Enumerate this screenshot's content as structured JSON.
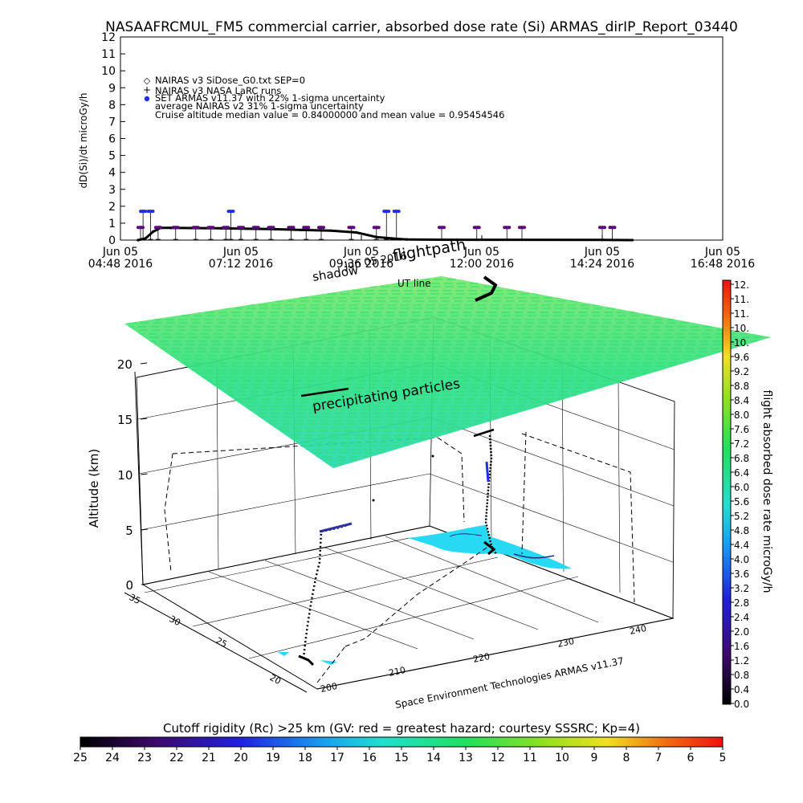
{
  "title": "NASAAFRCMUL_FM5 commercial carrier, absorbed dose rate (Si) ARMAS_dirIP_Report_03440",
  "chart_data": [
    {
      "type": "line",
      "ylabel": "dD(Si)/dt microGy/h",
      "ylim": [
        0,
        12
      ],
      "yticks": [
        "0",
        "1",
        "2",
        "3",
        "4",
        "5",
        "6",
        "7",
        "8",
        "9",
        "10",
        "11",
        "12"
      ],
      "xlim_hours": [
        4.8,
        16.8
      ],
      "xticks": [
        {
          "date": "Jun 05",
          "time": "04:48 2016"
        },
        {
          "date": "Jun 05",
          "time": "07:12 2016"
        },
        {
          "date": "Jun 05",
          "time": "09:36 2016"
        },
        {
          "date": "Jun 05",
          "time": "12:00 2016"
        },
        {
          "date": "Jun 05",
          "time": "14:24 2016"
        },
        {
          "date": "Jun 05",
          "time": "16:48 2016"
        }
      ],
      "legend": [
        {
          "label": "NAIRAS v3 SiDose_G0.txt SEP=0",
          "symbol": "diamond"
        },
        {
          "label": "NAIRAS v3 NASA LaRC runs",
          "symbol": "plus"
        },
        {
          "label": "SET ARMAS v11.37 with 22% 1-sigma uncertainty",
          "symbol": "blue-dot"
        },
        {
          "label": "average NAIRAS v2 31% 1-sigma uncertainty",
          "symbol": ""
        },
        {
          "label": "Cruise altitude median value = 0.84000000 and mean value = 0.95454546",
          "symbol": ""
        }
      ],
      "series": [
        {
          "symbol": "line",
          "points": [
            [
              5.15,
              0.0
            ],
            [
              5.3,
              0.1
            ],
            [
              5.45,
              0.5
            ],
            [
              5.6,
              0.72
            ],
            [
              5.8,
              0.72
            ],
            [
              6.2,
              0.71
            ],
            [
              6.8,
              0.7
            ],
            [
              7.2,
              0.68
            ],
            [
              7.8,
              0.65
            ],
            [
              8.4,
              0.6
            ],
            [
              9.0,
              0.56
            ],
            [
              9.5,
              0.45
            ],
            [
              9.9,
              0.18
            ],
            [
              10.2,
              0.1
            ],
            [
              10.5,
              0.04
            ],
            [
              11.5,
              0.02
            ],
            [
              14.4,
              0.01
            ],
            [
              15.0,
              0.0
            ]
          ]
        },
        {
          "symbol": "blue-dot",
          "points": [
            [
              5.25,
              1.7
            ],
            [
              5.4,
              1.7
            ],
            [
              7.0,
              1.7
            ],
            [
              10.1,
              1.7
            ],
            [
              10.3,
              1.7
            ]
          ]
        },
        {
          "symbol": "purple-dot",
          "points": [
            [
              5.2,
              0.75
            ],
            [
              5.55,
              0.75
            ],
            [
              5.9,
              0.75
            ],
            [
              6.3,
              0.75
            ],
            [
              6.6,
              0.75
            ],
            [
              6.9,
              0.75
            ],
            [
              7.2,
              0.75
            ],
            [
              7.5,
              0.75
            ],
            [
              7.8,
              0.75
            ],
            [
              8.2,
              0.75
            ],
            [
              8.5,
              0.75
            ],
            [
              8.8,
              0.75
            ],
            [
              9.4,
              0.75
            ],
            [
              9.9,
              0.75
            ],
            [
              11.2,
              0.75
            ],
            [
              11.9,
              0.75
            ],
            [
              12.5,
              0.75
            ],
            [
              12.8,
              0.75
            ],
            [
              14.4,
              0.75
            ],
            [
              14.6,
              0.75
            ]
          ]
        }
      ]
    },
    {
      "type": "heatmap",
      "title_text": "",
      "zlabel": "Altitude (km)",
      "zticks": [
        "0",
        "5",
        "10",
        "15",
        "20"
      ],
      "lat_ticks": [
        "20",
        "25",
        "30",
        "35"
      ],
      "lon_ticks": [
        "200",
        "210",
        "220",
        "230",
        "240"
      ],
      "labels": {
        "shadow": "shadow",
        "flightpath": "flightpath",
        "utline": "UT line",
        "precip": "precipitating particles",
        "date_overlay": "Jun 05 2016",
        "credit": "Space Environment Technologies ARMAS v11.37"
      }
    }
  ],
  "dose_colorbar": {
    "label": "flight absorbed dose rate microGy/h",
    "ticks": [
      "0.0",
      "0.4",
      "0.8",
      "1.2",
      "1.6",
      "2.0",
      "2.4",
      "2.8",
      "3.2",
      "3.6",
      "4.0",
      "4.4",
      "4.8",
      "5.2",
      "5.6",
      "6.0",
      "6.4",
      "6.8",
      "7.2",
      "7.6",
      "8.0",
      "8.4",
      "8.8",
      "9.2",
      "9.6",
      "10.",
      "10.",
      "11.",
      "11.",
      "12."
    ]
  },
  "cutoff_colorbar": {
    "label": "Cutoff rigidity (Rc) >25 km (GV: red = greatest hazard; courtesy SSSRC; Kp=4)",
    "ticks": [
      "25",
      "24",
      "23",
      "22",
      "21",
      "20",
      "19",
      "18",
      "17",
      "16",
      "15",
      "14",
      "13",
      "12",
      "11",
      "10",
      "9",
      "8",
      "7",
      "6",
      "5"
    ]
  },
  "colors": {
    "green_grid": "#22e07a",
    "cyan_ground": "#27d9f2",
    "blue_points": "#2030e0",
    "purple_points": "#5a0a7a"
  }
}
